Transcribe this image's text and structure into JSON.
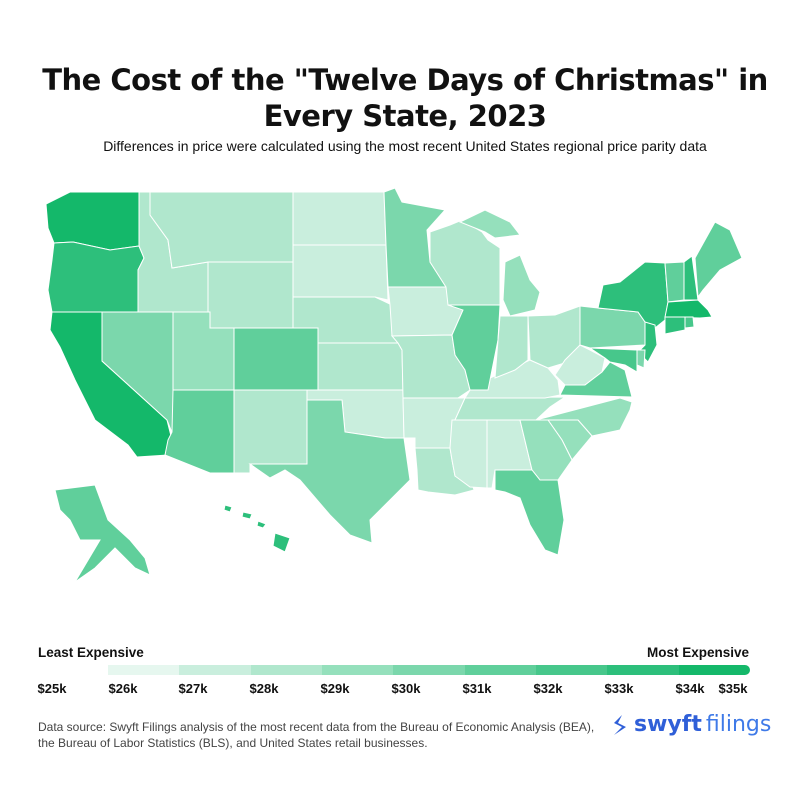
{
  "title": "The Cost of the \"Twelve Days of Christmas\" in Every State, 2023",
  "subtitle": "Differences in price were calculated using the most recent United States regional price parity data",
  "chart_data": {
    "type": "choropleth",
    "legend": {
      "low_label": "Least Expensive",
      "high_label": "Most Expensive",
      "ticks": [
        "$25k",
        "$26k",
        "$27k",
        "$28k",
        "$29k",
        "$30k",
        "$31k",
        "$32k",
        "$33k",
        "$34k",
        "$35k"
      ],
      "colors": [
        "#e6f7ef",
        "#c9eedd",
        "#b0e7cd",
        "#95e0bc",
        "#7bd7ac",
        "#60cf9b",
        "#47c78b",
        "#2dbf7b",
        "#14b86a"
      ]
    },
    "state_tiers": {
      "WA": 8,
      "OR": 7,
      "CA": 8,
      "NV": 4,
      "ID": 2,
      "MT": 2,
      "WY": 2,
      "UT": 3,
      "AZ": 5,
      "CO": 5,
      "NM": 2,
      "ND": 1,
      "SD": 1,
      "NE": 2,
      "KS": 2,
      "OK": 1,
      "TX": 4,
      "MN": 4,
      "IA": 1,
      "MO": 2,
      "AR": 1,
      "LA": 2,
      "WI": 2,
      "IL": 5,
      "MI": 3,
      "IN": 2,
      "OH": 2,
      "KY": 1,
      "TN": 2,
      "MS": 1,
      "AL": 1,
      "GA": 3,
      "FL": 5,
      "SC": 3,
      "NC": 3,
      "VA": 5,
      "WV": 1,
      "PA": 4,
      "NY": 7,
      "VT": 5,
      "NH": 7,
      "ME": 5,
      "MA": 8,
      "CT": 7,
      "RI": 6,
      "NJ": 7,
      "DE": 4,
      "MD": 6,
      "AK": 5,
      "HI": 7
    }
  },
  "footer": {
    "source": "Data source: Swyft Filings analysis of the most recent data from the Bureau of Economic Analysis (BEA), the Bureau of Labor Statistics (BLS), and United States retail businesses.",
    "logo_text_1": "swyft",
    "logo_text_2": "filings"
  }
}
